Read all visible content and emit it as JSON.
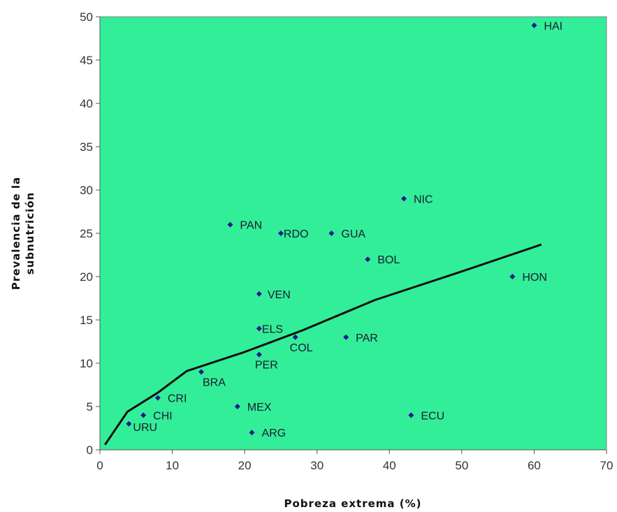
{
  "chart_data": {
    "type": "scatter",
    "xlabel": "Pobreza extrema (%)",
    "ylabel_lines": [
      "Prevalencia de la",
      "subnutrición"
    ],
    "xlim": [
      0,
      70
    ],
    "ylim": [
      0,
      50
    ],
    "x_ticks": [
      "0",
      "10",
      "20",
      "30",
      "40",
      "50",
      "60",
      "70"
    ],
    "y_ticks": [
      "0",
      "5",
      "10",
      "15",
      "20",
      "25",
      "30",
      "35",
      "40",
      "45",
      "50"
    ],
    "grid": false,
    "legend": "none",
    "plot_background": "#33ee99",
    "marker_color": "#1a1a8c",
    "trend_color": "#111111",
    "points": [
      {
        "label": "HAI",
        "x": 60,
        "y": 49
      },
      {
        "label": "NIC",
        "x": 42,
        "y": 29
      },
      {
        "label": "PAN",
        "x": 18,
        "y": 26
      },
      {
        "label": "RDO",
        "x": 25,
        "y": 25
      },
      {
        "label": "GUA",
        "x": 32,
        "y": 25
      },
      {
        "label": "BOL",
        "x": 37,
        "y": 22
      },
      {
        "label": "HON",
        "x": 57,
        "y": 20
      },
      {
        "label": "VEN",
        "x": 22,
        "y": 18
      },
      {
        "label": "ELS",
        "x": 22,
        "y": 14
      },
      {
        "label": "COL",
        "x": 27,
        "y": 13
      },
      {
        "label": "PAR",
        "x": 34,
        "y": 13
      },
      {
        "label": "PER",
        "x": 22,
        "y": 11
      },
      {
        "label": "BRA",
        "x": 14,
        "y": 9
      },
      {
        "label": "CRI",
        "x": 8,
        "y": 6
      },
      {
        "label": "MEX",
        "x": 19,
        "y": 5
      },
      {
        "label": "CHI",
        "x": 6,
        "y": 4
      },
      {
        "label": "ECU",
        "x": 43,
        "y": 4
      },
      {
        "label": "URU",
        "x": 4,
        "y": 3
      },
      {
        "label": "ARG",
        "x": 21,
        "y": 2
      }
    ],
    "trend_line": [
      {
        "x": 0.7,
        "y": 0.6
      },
      {
        "x": 3.8,
        "y": 4.4
      },
      {
        "x": 8.0,
        "y": 6.6
      },
      {
        "x": 12.0,
        "y": 9.1
      },
      {
        "x": 20.0,
        "y": 11.3
      },
      {
        "x": 28.0,
        "y": 13.8
      },
      {
        "x": 38.0,
        "y": 17.3
      },
      {
        "x": 50.0,
        "y": 20.6
      },
      {
        "x": 61.0,
        "y": 23.7
      }
    ]
  }
}
